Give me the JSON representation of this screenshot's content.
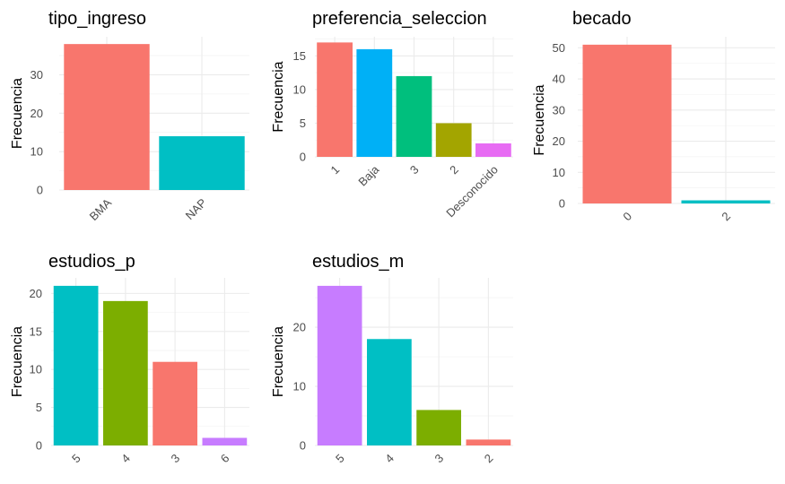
{
  "chart_data": [
    {
      "type": "bar",
      "title": "tipo_ingreso",
      "ylabel": "Frecuencia",
      "xlabel": "",
      "categories": [
        "BMA",
        "NAP"
      ],
      "values": [
        38,
        14
      ],
      "colors": [
        "#F8766D",
        "#00BFC4"
      ],
      "ylim": [
        0,
        39.9
      ],
      "yticks": [
        0,
        10,
        20,
        30
      ],
      "grid": true,
      "legend": "none"
    },
    {
      "type": "bar",
      "title": "preferencia_seleccion",
      "ylabel": "Frecuencia",
      "xlabel": "",
      "categories": [
        "1",
        "Baja",
        "3",
        "2",
        "Desconocido"
      ],
      "values": [
        17,
        16,
        12,
        5,
        2
      ],
      "colors": [
        "#F8766D",
        "#00B0F6",
        "#00BF7D",
        "#A3A500",
        "#E76BF3"
      ],
      "ylim": [
        0,
        17.85
      ],
      "yticks": [
        0,
        5,
        10,
        15
      ],
      "grid": true,
      "legend": "none"
    },
    {
      "type": "bar",
      "title": "becado",
      "ylabel": "Frecuencia",
      "xlabel": "",
      "categories": [
        "0",
        "2"
      ],
      "values": [
        51,
        1
      ],
      "colors": [
        "#F8766D",
        "#00BFC4"
      ],
      "ylim": [
        0,
        53.55
      ],
      "yticks": [
        0,
        10,
        20,
        30,
        40,
        50
      ],
      "grid": true,
      "legend": "none"
    },
    {
      "type": "bar",
      "title": "estudios_p",
      "ylabel": "Frecuencia",
      "xlabel": "",
      "categories": [
        "5",
        "4",
        "3",
        "6"
      ],
      "values": [
        21,
        19,
        11,
        1
      ],
      "colors": [
        "#00BFC4",
        "#7CAE00",
        "#F8766D",
        "#C77CFF"
      ],
      "ylim": [
        0,
        22.05
      ],
      "yticks": [
        0,
        5,
        10,
        15,
        20
      ],
      "grid": true,
      "legend": "none"
    },
    {
      "type": "bar",
      "title": "estudios_m",
      "ylabel": "Frecuencia",
      "xlabel": "",
      "categories": [
        "5",
        "4",
        "3",
        "2"
      ],
      "values": [
        27,
        18,
        6,
        1
      ],
      "colors": [
        "#C77CFF",
        "#00BFC4",
        "#7CAE00",
        "#F8766D"
      ],
      "ylim": [
        0,
        28.35
      ],
      "yticks": [
        0,
        10,
        20
      ],
      "grid": true,
      "legend": "none"
    }
  ]
}
